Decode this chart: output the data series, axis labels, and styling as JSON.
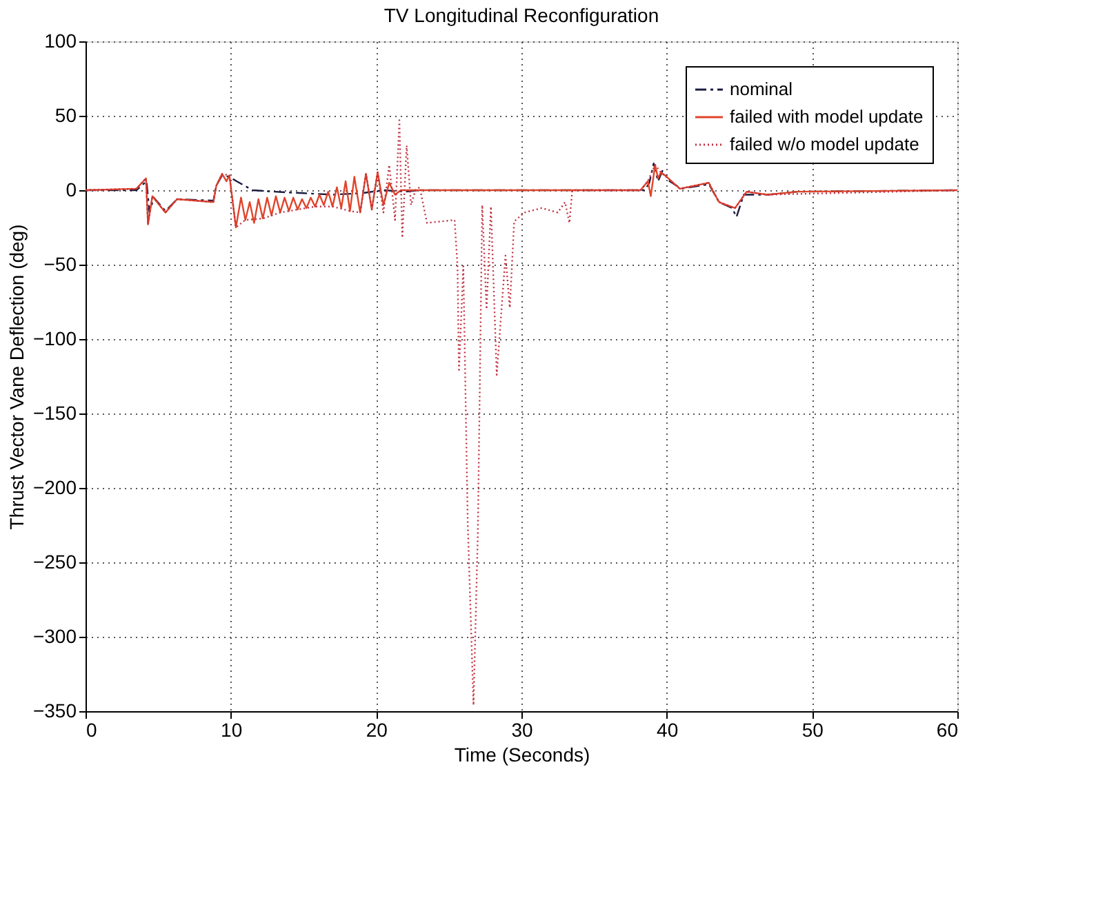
{
  "chart_data": {
    "type": "line",
    "title": "TV Longitudinal Reconfiguration",
    "xlabel": "Time (Seconds)",
    "ylabel": "Thrust Vector Vane Deflection (deg)",
    "xlim": [
      0,
      60
    ],
    "xticks": [
      0,
      10,
      20,
      30,
      40,
      50,
      60
    ],
    "ylim": [
      -350,
      100
    ],
    "yticks": [
      -350,
      -300,
      -250,
      -200,
      -150,
      -100,
      -50,
      0,
      50,
      100
    ],
    "grid": true,
    "legend": "top right",
    "marker": "none",
    "series": [
      {
        "name": "nominal",
        "color": "#1a1a40",
        "line_style": "dashed",
        "x": [
          0,
          3.5,
          4.2,
          4.4,
          4.7,
          5.5,
          6.3,
          8.8,
          9.0,
          9.4,
          9.9,
          10.4,
          11.5,
          13,
          15,
          17,
          19,
          20.5,
          22,
          23,
          38.5,
          38.8,
          39.1,
          39.4,
          39.7,
          40.2,
          41,
          42.9,
          43.6,
          44.5,
          44.8,
          45.3,
          47,
          49,
          60
        ],
        "values": [
          0,
          0,
          6,
          -15,
          -5,
          -14,
          -6,
          -7,
          3,
          10,
          9,
          6,
          0,
          -1,
          -2,
          -3,
          -2,
          0,
          -1,
          0,
          0,
          5,
          18,
          6,
          13,
          6,
          1,
          4,
          -8,
          -12,
          -18,
          -3,
          -3,
          -1,
          0
        ]
      },
      {
        "name": "failed with model update",
        "color": "#e0442a",
        "line_style": "solid",
        "x": [
          0,
          3.5,
          4.16,
          4.3,
          4.6,
          5.5,
          6.3,
          8.8,
          9.0,
          9.4,
          9.7,
          9.9,
          10.35,
          10.7,
          11.0,
          11.3,
          11.6,
          11.9,
          12.2,
          12.5,
          12.8,
          13.1,
          13.4,
          13.7,
          14.0,
          14.3,
          14.6,
          14.9,
          15.2,
          15.5,
          15.8,
          16.1,
          16.4,
          16.7,
          17.0,
          17.3,
          17.6,
          17.9,
          18.2,
          18.5,
          18.9,
          19.3,
          19.7,
          20.1,
          20.5,
          20.9,
          21.3,
          21.7,
          38.2,
          38.7,
          38.9,
          39.2,
          39.4,
          39.6,
          40.0,
          40.9,
          42.9,
          43.2,
          43.6,
          44.7,
          45.5,
          46.9,
          49,
          60
        ],
        "values": [
          0,
          1,
          8,
          -23,
          -4,
          -15,
          -6,
          -8,
          3,
          11,
          6,
          10,
          -25,
          -5,
          -20,
          -8,
          -22,
          -6,
          -19,
          -5,
          -17,
          -4,
          -15,
          -5,
          -14,
          -5,
          -13,
          -6,
          -12,
          -5,
          -11,
          -3,
          -10,
          -1,
          -11,
          2,
          -12,
          6,
          -14,
          9,
          -15,
          11,
          -13,
          12,
          -10,
          5,
          -3,
          0,
          0,
          6,
          -4,
          17,
          8,
          12,
          9,
          1,
          5,
          -1,
          -8,
          -12,
          -1,
          -3,
          -1,
          0
        ]
      },
      {
        "name": "failed w/o model update",
        "color": "#c03040",
        "line_style": "dotted",
        "x": [
          0,
          3.5,
          4.16,
          4.3,
          4.6,
          5.5,
          6.3,
          8.8,
          9.0,
          9.4,
          9.9,
          10.35,
          11.0,
          12.2,
          13.4,
          14.6,
          15.8,
          17.0,
          18.2,
          18.9,
          19.3,
          19.7,
          20.1,
          20.5,
          20.9,
          21.3,
          21.6,
          21.8,
          22.1,
          22.4,
          22.7,
          23.0,
          23.5,
          25.4,
          25.6,
          25.7,
          26.0,
          26.3,
          26.7,
          27.0,
          27.3,
          27.6,
          27.9,
          28.3,
          28.9,
          29.2,
          29.5,
          30.2,
          31.4,
          32.5,
          33.0,
          33.3,
          33.5,
          38.2,
          38.7,
          39.2,
          39.6,
          40.9,
          42.9,
          43.6,
          44.7,
          45.5,
          46.9,
          60
        ],
        "values": [
          0,
          1,
          8,
          -23,
          -4,
          -15,
          -6,
          -8,
          3,
          11,
          10,
          -25,
          -20,
          -19,
          -15,
          -13,
          -11,
          -11,
          -14,
          -15,
          11,
          -13,
          12,
          -15,
          17,
          -20,
          47,
          -32,
          30,
          -10,
          0,
          2,
          -22,
          -20,
          -51,
          -122,
          -51,
          -222,
          -346,
          -230,
          -10,
          -80,
          -11,
          -124,
          -44,
          -79,
          -21,
          -15,
          -12,
          -15,
          -8,
          -22,
          0,
          0,
          6,
          17,
          12,
          1,
          5,
          -8,
          -12,
          -1,
          -3,
          0
        ]
      }
    ]
  }
}
